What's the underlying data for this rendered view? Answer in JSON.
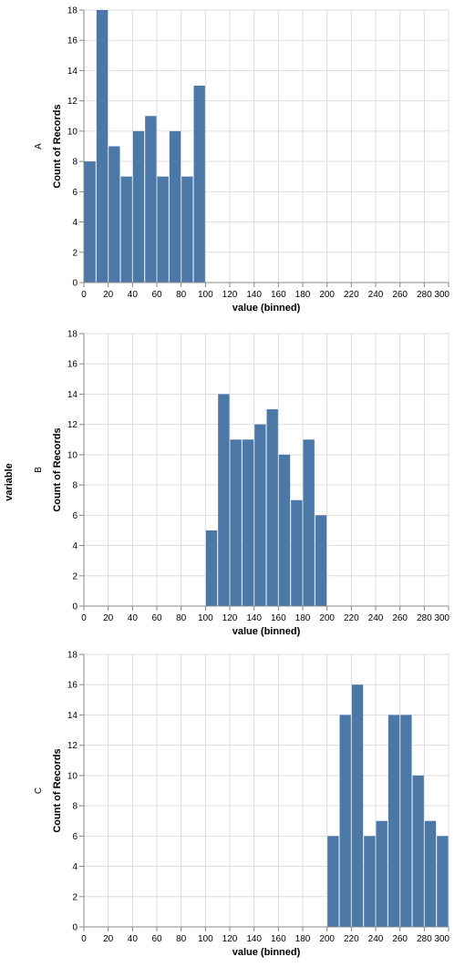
{
  "facet_title": "variable",
  "colors": {
    "bar": "#4c78a8",
    "grid": "#dddddd",
    "axis": "#888888"
  },
  "chart_data": [
    {
      "type": "bar",
      "facet": "A",
      "xlabel": "value (binned)",
      "ylabel": "Count of Records",
      "xlim": [
        0,
        300
      ],
      "ylim": [
        0,
        18
      ],
      "xticks": [
        0,
        20,
        40,
        60,
        80,
        100,
        120,
        140,
        160,
        180,
        200,
        220,
        240,
        260,
        280,
        300
      ],
      "yticks": [
        0,
        2,
        4,
        6,
        8,
        10,
        12,
        14,
        16,
        18
      ],
      "grid": true,
      "bin_width": 10,
      "bins": [
        {
          "start": 0,
          "count": 8
        },
        {
          "start": 10,
          "count": 18
        },
        {
          "start": 20,
          "count": 9
        },
        {
          "start": 30,
          "count": 7
        },
        {
          "start": 40,
          "count": 10
        },
        {
          "start": 50,
          "count": 11
        },
        {
          "start": 60,
          "count": 7
        },
        {
          "start": 70,
          "count": 10
        },
        {
          "start": 80,
          "count": 7
        },
        {
          "start": 90,
          "count": 13
        }
      ]
    },
    {
      "type": "bar",
      "facet": "B",
      "xlabel": "value (binned)",
      "ylabel": "Count of Records",
      "xlim": [
        0,
        300
      ],
      "ylim": [
        0,
        18
      ],
      "xticks": [
        0,
        20,
        40,
        60,
        80,
        100,
        120,
        140,
        160,
        180,
        200,
        220,
        240,
        260,
        280,
        300
      ],
      "yticks": [
        0,
        2,
        4,
        6,
        8,
        10,
        12,
        14,
        16,
        18
      ],
      "grid": true,
      "bin_width": 10,
      "bins": [
        {
          "start": 100,
          "count": 5
        },
        {
          "start": 110,
          "count": 14
        },
        {
          "start": 120,
          "count": 11
        },
        {
          "start": 130,
          "count": 11
        },
        {
          "start": 140,
          "count": 12
        },
        {
          "start": 150,
          "count": 13
        },
        {
          "start": 160,
          "count": 10
        },
        {
          "start": 170,
          "count": 7
        },
        {
          "start": 180,
          "count": 11
        },
        {
          "start": 190,
          "count": 6
        }
      ]
    },
    {
      "type": "bar",
      "facet": "C",
      "xlabel": "value (binned)",
      "ylabel": "Count of Records",
      "xlim": [
        0,
        300
      ],
      "ylim": [
        0,
        18
      ],
      "xticks": [
        0,
        20,
        40,
        60,
        80,
        100,
        120,
        140,
        160,
        180,
        200,
        220,
        240,
        260,
        280,
        300
      ],
      "yticks": [
        0,
        2,
        4,
        6,
        8,
        10,
        12,
        14,
        16,
        18
      ],
      "grid": true,
      "bin_width": 10,
      "bins": [
        {
          "start": 200,
          "count": 6
        },
        {
          "start": 210,
          "count": 14
        },
        {
          "start": 220,
          "count": 16
        },
        {
          "start": 230,
          "count": 6
        },
        {
          "start": 240,
          "count": 7
        },
        {
          "start": 250,
          "count": 14
        },
        {
          "start": 260,
          "count": 14
        },
        {
          "start": 270,
          "count": 10
        },
        {
          "start": 280,
          "count": 7
        },
        {
          "start": 290,
          "count": 6
        }
      ]
    }
  ]
}
